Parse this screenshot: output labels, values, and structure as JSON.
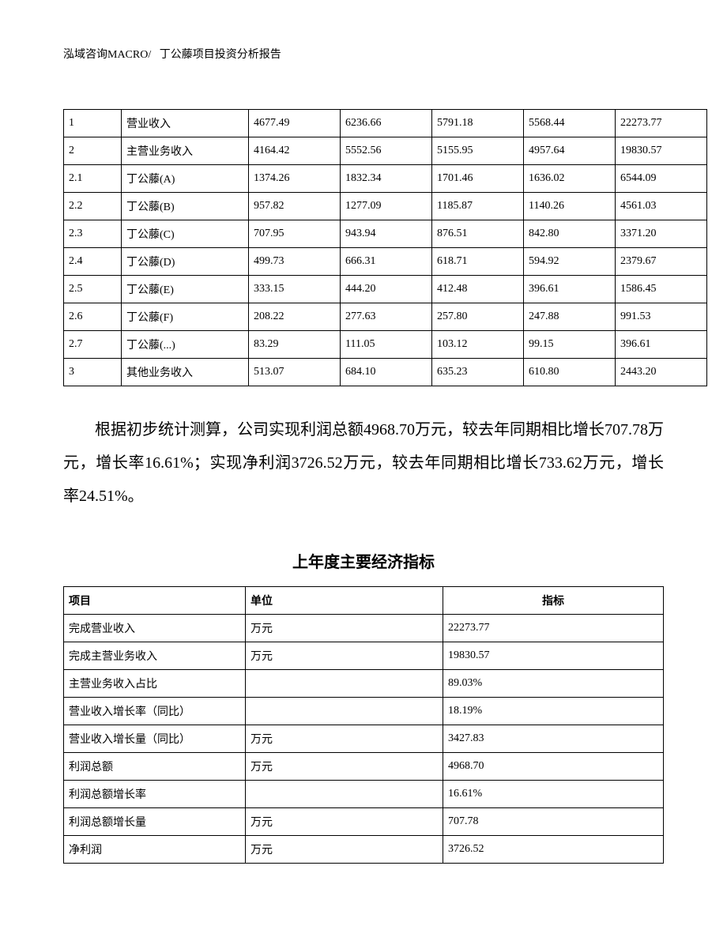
{
  "header": {
    "left": "泓域咨询MACRO/",
    "right": "丁公藤项目投资分析报告"
  },
  "table1": {
    "rows": [
      [
        "1",
        "营业收入",
        "4677.49",
        "6236.66",
        "5791.18",
        "5568.44",
        "22273.77"
      ],
      [
        "2",
        "主营业务收入",
        "4164.42",
        "5552.56",
        "5155.95",
        "4957.64",
        "19830.57"
      ],
      [
        "2.1",
        "丁公藤(A)",
        "1374.26",
        "1832.34",
        "1701.46",
        "1636.02",
        "6544.09"
      ],
      [
        "2.2",
        "丁公藤(B)",
        "957.82",
        "1277.09",
        "1185.87",
        "1140.26",
        "4561.03"
      ],
      [
        "2.3",
        "丁公藤(C)",
        "707.95",
        "943.94",
        "876.51",
        "842.80",
        "3371.20"
      ],
      [
        "2.4",
        "丁公藤(D)",
        "499.73",
        "666.31",
        "618.71",
        "594.92",
        "2379.67"
      ],
      [
        "2.5",
        "丁公藤(E)",
        "333.15",
        "444.20",
        "412.48",
        "396.61",
        "1586.45"
      ],
      [
        "2.6",
        "丁公藤(F)",
        "208.22",
        "277.63",
        "257.80",
        "247.88",
        "991.53"
      ],
      [
        "2.7",
        "丁公藤(...)",
        "83.29",
        "111.05",
        "103.12",
        "99.15",
        "396.61"
      ],
      [
        "3",
        "其他业务收入",
        "513.07",
        "684.10",
        "635.23",
        "610.80",
        "2443.20"
      ]
    ]
  },
  "paragraph": "根据初步统计测算，公司实现利润总额4968.70万元，较去年同期相比增长707.78万元，增长率16.61%；实现净利润3726.52万元，较去年同期相比增长733.62万元，增长率24.51%。",
  "section_title": "上年度主要经济指标",
  "table2": {
    "headers": [
      "项目",
      "单位",
      "指标"
    ],
    "rows": [
      [
        "完成营业收入",
        "万元",
        "22273.77"
      ],
      [
        "完成主营业务收入",
        "万元",
        "19830.57"
      ],
      [
        "主营业务收入占比",
        "",
        "89.03%"
      ],
      [
        "营业收入增长率（同比）",
        "",
        "18.19%"
      ],
      [
        "营业收入增长量（同比）",
        "万元",
        "3427.83"
      ],
      [
        "利润总额",
        "万元",
        "4968.70"
      ],
      [
        "利润总额增长率",
        "",
        "16.61%"
      ],
      [
        "利润总额增长量",
        "万元",
        "707.78"
      ],
      [
        "净利润",
        "万元",
        "3726.52"
      ]
    ]
  }
}
